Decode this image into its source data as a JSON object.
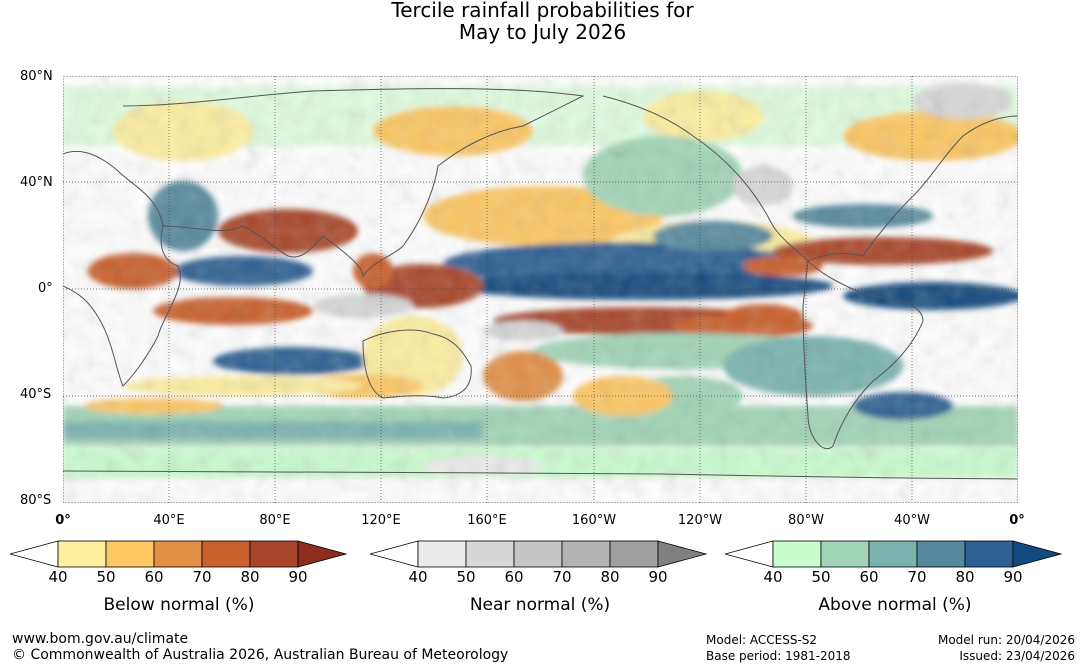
{
  "title": {
    "line1": "Tercile rainfall probabilities for",
    "line2": "May to July 2026"
  },
  "lat_labels": [
    "80°N",
    "40°N",
    "0°",
    "40°S",
    "80°S"
  ],
  "lon_labels": [
    "0°",
    "40°E",
    "80°E",
    "120°E",
    "160°E",
    "160°W",
    "120°W",
    "80°W",
    "40°W",
    "0°"
  ],
  "colorbars": [
    {
      "label": "Below normal (%)",
      "ticks": [
        "40",
        "50",
        "60",
        "70",
        "80",
        "90"
      ],
      "colors": [
        "#ffffff",
        "#fdeea0",
        "#fdc763",
        "#e08f45",
        "#c9612f",
        "#a8462b",
        "#8c2e1d"
      ]
    },
    {
      "label": "Near normal (%)",
      "ticks": [
        "40",
        "50",
        "60",
        "70",
        "80",
        "90"
      ],
      "colors": [
        "#ffffff",
        "#ebebeb",
        "#d7d7d7",
        "#c5c5c5",
        "#b3b3b3",
        "#9f9f9f",
        "#808080"
      ]
    },
    {
      "label": "Above normal (%)",
      "ticks": [
        "40",
        "50",
        "60",
        "70",
        "80",
        "90"
      ],
      "colors": [
        "#ffffff",
        "#c9fbcc",
        "#a1d4b7",
        "#7ab3ae",
        "#56899d",
        "#2f6093",
        "#134b80"
      ]
    }
  ],
  "footer": {
    "url": "www.bom.gov.au/climate",
    "copyright": "© Commonwealth of Australia 2026, Australian Bureau of Meteorology",
    "model": "Model: ACCESS-S2",
    "base_period": "Base period: 1981-2018",
    "model_run": "Model run: 20/04/2026",
    "issued": "Issued: 23/04/2026"
  }
}
